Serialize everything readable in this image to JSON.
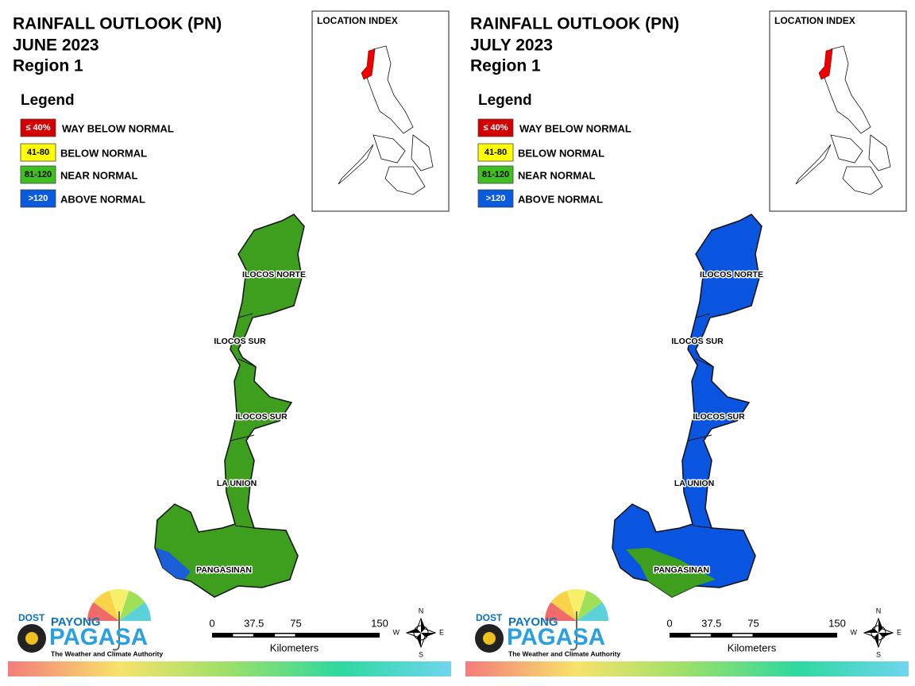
{
  "panels": [
    {
      "title": "RAINFALL OUTLOOK (PN)",
      "month": "JUNE 2023",
      "region": "Region 1",
      "legend": {
        "title": "Legend",
        "items": [
          {
            "range": "≤ 40%",
            "label": "WAY BELOW NORMAL",
            "color": "#d40000",
            "text_color": "#ffffff"
          },
          {
            "range": "41-80",
            "label": "BELOW NORMAL",
            "color": "#ffff00",
            "text_color": "#000000"
          },
          {
            "range": "81-120",
            "label": "NEAR NORMAL",
            "color": "#3ec020",
            "text_color": "#000000"
          },
          {
            "range": ">120",
            "label": "ABOVE NORMAL",
            "color": "#0a5ae0",
            "text_color": "#ffffff"
          }
        ]
      },
      "index_title": "LOCATION INDEX",
      "region_fill": "#3e9e1e",
      "patch_fill": "#1a5fd8",
      "provinces": [
        "ILOCOS NORTE",
        "ILOCOS SUR",
        "ILOCOS SUR",
        "LA UNION",
        "PANGASINAN"
      ],
      "scale": {
        "ticks": [
          0,
          37.5,
          75,
          150
        ],
        "unit": "Kilometers"
      },
      "compass": {
        "n": "N",
        "e": "E",
        "s": "S",
        "w": "W"
      },
      "logo": {
        "dost": "DOST",
        "payong": "PAYONG",
        "pagasa": "PAGASA",
        "tagline": "The Weather and Climate Authority"
      }
    },
    {
      "title": "RAINFALL OUTLOOK (PN)",
      "month": "JULY 2023",
      "region": "Region 1",
      "legend": {
        "title": "Legend",
        "items": [
          {
            "range": "≤ 40%",
            "label": "WAY BELOW NORMAL",
            "color": "#d40000",
            "text_color": "#ffffff"
          },
          {
            "range": "41-80",
            "label": "BELOW NORMAL",
            "color": "#ffff00",
            "text_color": "#000000"
          },
          {
            "range": "81-120",
            "label": "NEAR NORMAL",
            "color": "#3ec020",
            "text_color": "#000000"
          },
          {
            "range": ">120",
            "label": "ABOVE NORMAL",
            "color": "#0a5ae0",
            "text_color": "#ffffff"
          }
        ]
      },
      "index_title": "LOCATION INDEX",
      "region_fill": "#0a55e0",
      "patch_fill": "#3e9e1e",
      "provinces": [
        "ILOCOS NORTE",
        "ILOCOS SUR",
        "ILOCOS SUR",
        "LA UNION",
        "PANGASINAN"
      ],
      "scale": {
        "ticks": [
          0,
          37.5,
          75,
          150
        ],
        "unit": "Kilometers"
      },
      "compass": {
        "n": "N",
        "e": "E",
        "s": "S",
        "w": "W"
      },
      "logo": {
        "dost": "DOST",
        "payong": "PAYONG",
        "pagasa": "PAGASA",
        "tagline": "The Weather and Climate Authority"
      }
    }
  ]
}
